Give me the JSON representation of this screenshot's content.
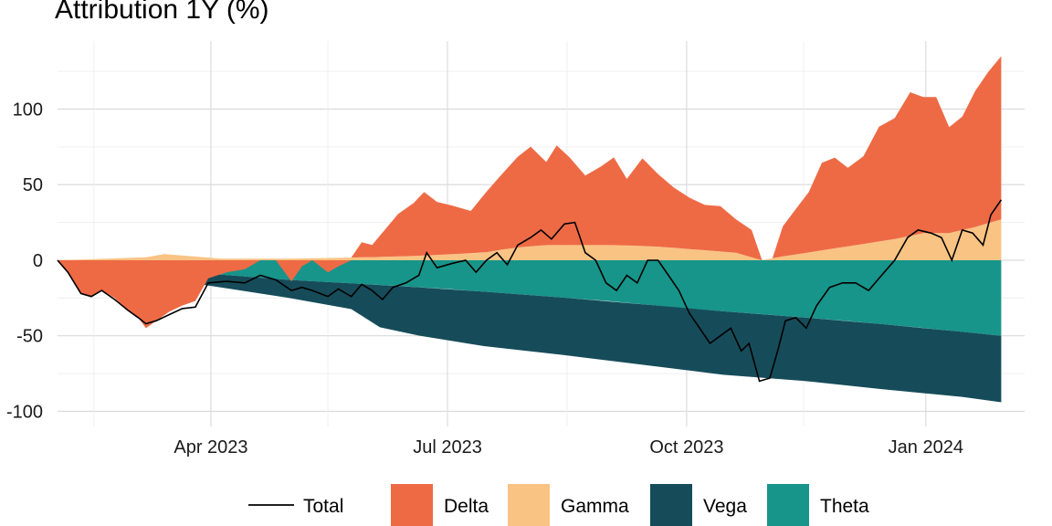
{
  "chart_data": {
    "type": "area",
    "title": "Attribution 1Y (%)",
    "xlabel": "",
    "ylabel": "",
    "x_range": [
      "2023-02-01",
      "2024-02-08"
    ],
    "ylim": [
      -110,
      145
    ],
    "y_ticks": [
      100,
      50,
      0,
      -50,
      -100
    ],
    "x_ticks": [
      {
        "date": "2023-04-01",
        "label": "Apr 2023"
      },
      {
        "date": "2023-07-01",
        "label": "Jul 2023"
      },
      {
        "date": "2023-10-01",
        "label": "Oct 2023"
      },
      {
        "date": "2024-01-01",
        "label": "Jan 2024"
      }
    ],
    "x_minor_ticks": [
      "2023-02-15",
      "2023-05-16",
      "2023-08-16",
      "2023-11-15"
    ],
    "grid": true,
    "legend_position": "bottom",
    "legend": [
      "Total",
      "Delta",
      "Gamma",
      "Vega",
      "Theta"
    ],
    "colors": {
      "Delta": "#EE6A45",
      "Gamma": "#F9C384",
      "Vega": "#164C5A",
      "Theta": "#17958A",
      "Total": "#000000"
    },
    "stacked": true,
    "series": [
      {
        "name": "Delta",
        "points": [
          [
            "2023-02-01",
            0
          ],
          [
            "2023-02-05",
            -8
          ],
          [
            "2023-02-10",
            -22
          ],
          [
            "2023-02-14",
            -24
          ],
          [
            "2023-02-18",
            -20
          ],
          [
            "2023-02-23",
            -25
          ],
          [
            "2023-02-28",
            -33
          ],
          [
            "2023-03-04",
            -38
          ],
          [
            "2023-03-07",
            -45
          ],
          [
            "2023-03-11",
            -40
          ],
          [
            "2023-03-16",
            -34
          ],
          [
            "2023-03-21",
            -30
          ],
          [
            "2023-03-26",
            -27
          ],
          [
            "2023-03-31",
            -12
          ],
          [
            "2023-04-07",
            -8
          ],
          [
            "2023-04-14",
            -6
          ],
          [
            "2023-04-20",
            0
          ],
          [
            "2023-04-26",
            0
          ],
          [
            "2023-05-02",
            -14
          ],
          [
            "2023-05-06",
            -4
          ],
          [
            "2023-05-10",
            0
          ],
          [
            "2023-05-16",
            -8
          ],
          [
            "2023-05-20",
            -4
          ],
          [
            "2023-05-25",
            0
          ],
          [
            "2023-05-29",
            10
          ],
          [
            "2023-06-02",
            8
          ],
          [
            "2023-06-06",
            16
          ],
          [
            "2023-06-12",
            28
          ],
          [
            "2023-06-18",
            35
          ],
          [
            "2023-06-22",
            42
          ],
          [
            "2023-06-27",
            35
          ],
          [
            "2023-07-03",
            32
          ],
          [
            "2023-07-10",
            28
          ],
          [
            "2023-07-16",
            40
          ],
          [
            "2023-07-22",
            50
          ],
          [
            "2023-07-28",
            60
          ],
          [
            "2023-08-02",
            66
          ],
          [
            "2023-08-08",
            55
          ],
          [
            "2023-08-12",
            66
          ],
          [
            "2023-08-17",
            58
          ],
          [
            "2023-08-23",
            46
          ],
          [
            "2023-08-29",
            52
          ],
          [
            "2023-09-03",
            58
          ],
          [
            "2023-09-08",
            44
          ],
          [
            "2023-09-14",
            58
          ],
          [
            "2023-09-20",
            48
          ],
          [
            "2023-09-26",
            40
          ],
          [
            "2023-10-02",
            34
          ],
          [
            "2023-10-08",
            30
          ],
          [
            "2023-10-14",
            30
          ],
          [
            "2023-10-20",
            22
          ],
          [
            "2023-10-26",
            18
          ],
          [
            "2023-10-30",
            0
          ],
          [
            "2023-11-03",
            0
          ],
          [
            "2023-11-07",
            20
          ],
          [
            "2023-11-12",
            30
          ],
          [
            "2023-11-17",
            40
          ],
          [
            "2023-11-22",
            58
          ],
          [
            "2023-11-27",
            60
          ],
          [
            "2023-12-02",
            52
          ],
          [
            "2023-12-08",
            58
          ],
          [
            "2023-12-14",
            76
          ],
          [
            "2023-12-20",
            80
          ],
          [
            "2023-12-26",
            95
          ],
          [
            "2023-12-31",
            90
          ],
          [
            "2024-01-05",
            90
          ],
          [
            "2024-01-10",
            70
          ],
          [
            "2024-01-15",
            75
          ],
          [
            "2024-01-20",
            90
          ],
          [
            "2024-01-25",
            100
          ],
          [
            "2024-01-30",
            108
          ]
        ]
      },
      {
        "name": "Gamma",
        "points": [
          [
            "2023-02-01",
            0
          ],
          [
            "2023-02-20",
            1
          ],
          [
            "2023-03-07",
            2
          ],
          [
            "2023-03-14",
            4
          ],
          [
            "2023-03-22",
            3
          ],
          [
            "2023-04-05",
            1
          ],
          [
            "2023-05-01",
            1
          ],
          [
            "2023-06-01",
            2
          ],
          [
            "2023-06-20",
            3
          ],
          [
            "2023-07-15",
            5
          ],
          [
            "2023-07-25",
            8
          ],
          [
            "2023-08-08",
            10
          ],
          [
            "2023-08-20",
            10
          ],
          [
            "2023-09-05",
            10
          ],
          [
            "2023-09-20",
            9
          ],
          [
            "2023-10-05",
            7
          ],
          [
            "2023-10-20",
            5
          ],
          [
            "2023-10-30",
            0
          ],
          [
            "2023-11-05",
            2
          ],
          [
            "2023-11-20",
            6
          ],
          [
            "2023-12-05",
            10
          ],
          [
            "2023-12-20",
            14
          ],
          [
            "2023-12-31",
            18
          ],
          [
            "2024-01-10",
            18
          ],
          [
            "2024-01-20",
            22
          ],
          [
            "2024-01-30",
            27
          ]
        ]
      },
      {
        "name": "Vega",
        "points": [
          [
            "2023-02-01",
            0
          ],
          [
            "2023-03-01",
            -4
          ],
          [
            "2023-04-01",
            -8
          ],
          [
            "2023-05-01",
            -12
          ],
          [
            "2023-05-25",
            -17
          ],
          [
            "2023-06-05",
            -28
          ],
          [
            "2023-06-20",
            -32
          ],
          [
            "2023-07-15",
            -36
          ],
          [
            "2023-08-15",
            -38
          ],
          [
            "2023-09-15",
            -40
          ],
          [
            "2023-10-15",
            -42
          ],
          [
            "2023-11-15",
            -42
          ],
          [
            "2023-12-15",
            -43
          ],
          [
            "2024-01-15",
            -43
          ],
          [
            "2024-01-30",
            -44
          ]
        ]
      },
      {
        "name": "Theta",
        "points": [
          [
            "2023-02-01",
            0
          ],
          [
            "2023-03-01",
            -5
          ],
          [
            "2023-04-01",
            -9
          ],
          [
            "2023-05-01",
            -13
          ],
          [
            "2023-06-01",
            -16
          ],
          [
            "2023-07-01",
            -19
          ],
          [
            "2023-08-01",
            -23
          ],
          [
            "2023-09-01",
            -27
          ],
          [
            "2023-10-01",
            -32
          ],
          [
            "2023-11-01",
            -36
          ],
          [
            "2023-12-01",
            -40
          ],
          [
            "2024-01-01",
            -45
          ],
          [
            "2024-01-30",
            -50
          ]
        ]
      },
      {
        "name": "Total",
        "points": [
          [
            "2023-02-01",
            0
          ],
          [
            "2023-02-05",
            -8
          ],
          [
            "2023-02-10",
            -22
          ],
          [
            "2023-02-14",
            -24
          ],
          [
            "2023-02-18",
            -20
          ],
          [
            "2023-02-23",
            -26
          ],
          [
            "2023-02-28",
            -33
          ],
          [
            "2023-03-04",
            -38
          ],
          [
            "2023-03-07",
            -42
          ],
          [
            "2023-03-11",
            -40
          ],
          [
            "2023-03-16",
            -36
          ],
          [
            "2023-03-21",
            -32
          ],
          [
            "2023-03-26",
            -31
          ],
          [
            "2023-03-31",
            -15
          ],
          [
            "2023-04-07",
            -14
          ],
          [
            "2023-04-14",
            -15
          ],
          [
            "2023-04-20",
            -10
          ],
          [
            "2023-04-26",
            -13
          ],
          [
            "2023-05-02",
            -20
          ],
          [
            "2023-05-06",
            -18
          ],
          [
            "2023-05-10",
            -20
          ],
          [
            "2023-05-16",
            -24
          ],
          [
            "2023-05-20",
            -19
          ],
          [
            "2023-05-25",
            -24
          ],
          [
            "2023-05-29",
            -16
          ],
          [
            "2023-06-02",
            -20
          ],
          [
            "2023-06-06",
            -26
          ],
          [
            "2023-06-10",
            -18
          ],
          [
            "2023-06-15",
            -15
          ],
          [
            "2023-06-20",
            -10
          ],
          [
            "2023-06-23",
            5
          ],
          [
            "2023-06-27",
            -5
          ],
          [
            "2023-07-03",
            -2
          ],
          [
            "2023-07-08",
            0
          ],
          [
            "2023-07-12",
            -8
          ],
          [
            "2023-07-16",
            0
          ],
          [
            "2023-07-20",
            5
          ],
          [
            "2023-07-24",
            -3
          ],
          [
            "2023-07-28",
            10
          ],
          [
            "2023-08-02",
            15
          ],
          [
            "2023-08-06",
            20
          ],
          [
            "2023-08-10",
            14
          ],
          [
            "2023-08-15",
            24
          ],
          [
            "2023-08-19",
            25
          ],
          [
            "2023-08-23",
            5
          ],
          [
            "2023-08-27",
            0
          ],
          [
            "2023-08-31",
            -15
          ],
          [
            "2023-09-04",
            -20
          ],
          [
            "2023-09-08",
            -10
          ],
          [
            "2023-09-12",
            -15
          ],
          [
            "2023-09-16",
            0
          ],
          [
            "2023-09-20",
            0
          ],
          [
            "2023-09-24",
            -10
          ],
          [
            "2023-09-28",
            -20
          ],
          [
            "2023-10-02",
            -35
          ],
          [
            "2023-10-06",
            -45
          ],
          [
            "2023-10-10",
            -55
          ],
          [
            "2023-10-14",
            -50
          ],
          [
            "2023-10-18",
            -45
          ],
          [
            "2023-10-22",
            -60
          ],
          [
            "2023-10-25",
            -55
          ],
          [
            "2023-10-29",
            -80
          ],
          [
            "2023-11-02",
            -78
          ],
          [
            "2023-11-05",
            -60
          ],
          [
            "2023-11-08",
            -40
          ],
          [
            "2023-11-12",
            -38
          ],
          [
            "2023-11-16",
            -45
          ],
          [
            "2023-11-20",
            -30
          ],
          [
            "2023-11-25",
            -18
          ],
          [
            "2023-11-30",
            -15
          ],
          [
            "2023-12-05",
            -15
          ],
          [
            "2023-12-10",
            -20
          ],
          [
            "2023-12-15",
            -10
          ],
          [
            "2023-12-20",
            0
          ],
          [
            "2023-12-25",
            15
          ],
          [
            "2023-12-29",
            20
          ],
          [
            "2024-01-03",
            18
          ],
          [
            "2024-01-07",
            15
          ],
          [
            "2024-01-11",
            0
          ],
          [
            "2024-01-15",
            20
          ],
          [
            "2024-01-19",
            18
          ],
          [
            "2024-01-23",
            10
          ],
          [
            "2024-01-26",
            30
          ],
          [
            "2024-01-30",
            40
          ]
        ]
      }
    ]
  }
}
